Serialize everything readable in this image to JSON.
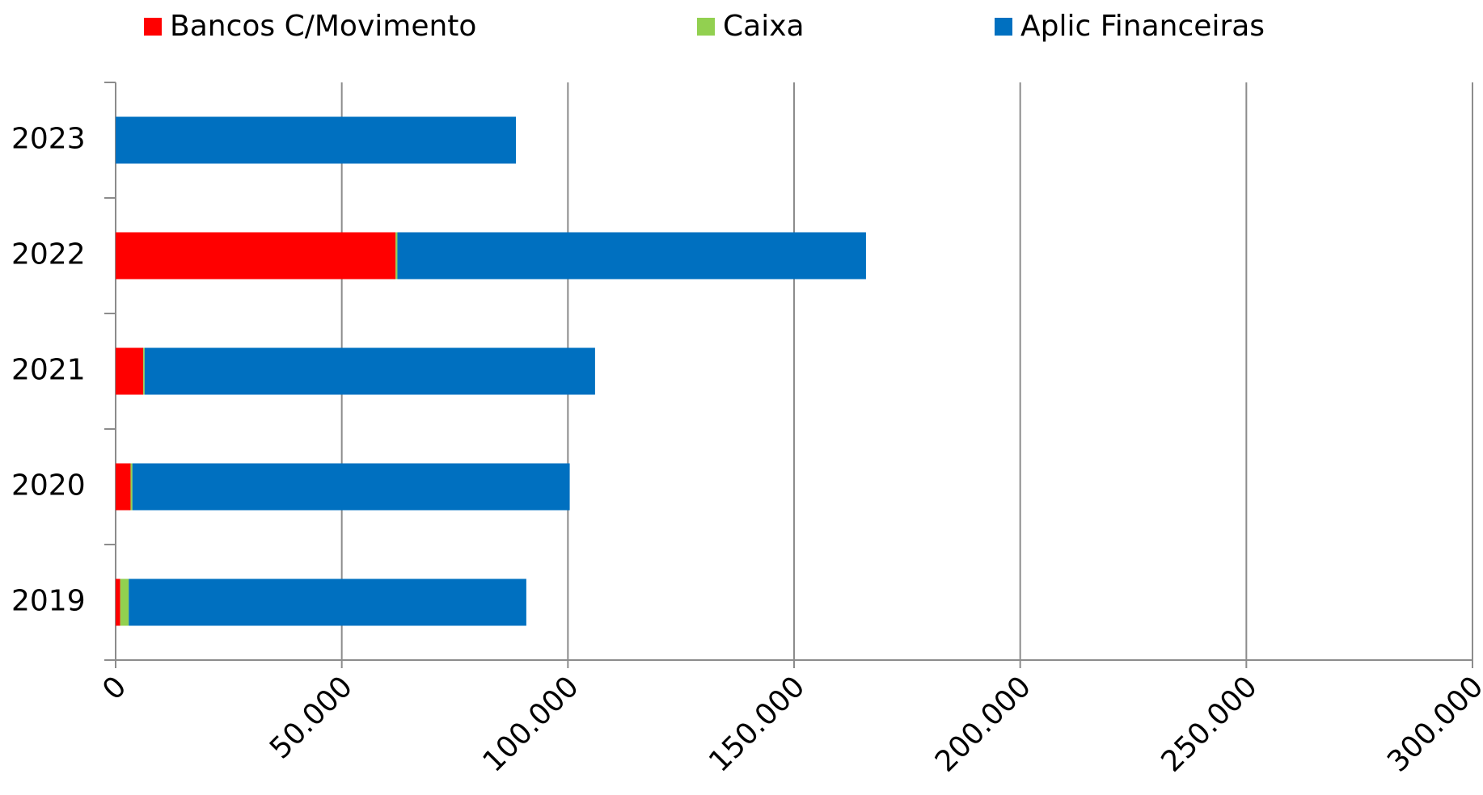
{
  "chart_data": {
    "type": "stacked-bar-horizontal",
    "categories": [
      "2019",
      "2020",
      "2021",
      "2022",
      "2023"
    ],
    "series": [
      {
        "name": "Bancos C/Movimento",
        "color": "#ff0000",
        "values": [
          1000,
          3300,
          6100,
          61900,
          0
        ]
      },
      {
        "name": "Caixa",
        "color": "#92d050",
        "values": [
          1900,
          400,
          300,
          400,
          0
        ]
      },
      {
        "name": "Aplic Financeiras",
        "color": "#0070c0",
        "values": [
          87900,
          96700,
          99600,
          103600,
          88500
        ]
      }
    ],
    "xlim": [
      0,
      300000
    ],
    "xticks": [
      0,
      {
        "value": 50000,
        "label": "50.000"
      },
      {
        "value": 100000,
        "label": "100.000"
      },
      {
        "value": 150000,
        "label": "150.000"
      },
      {
        "value": 200000,
        "label": "200.000"
      },
      {
        "value": 250000,
        "label": "250.000"
      },
      {
        "value": 300000,
        "label": "300.000"
      }
    ],
    "grid": true,
    "legend": "top"
  }
}
